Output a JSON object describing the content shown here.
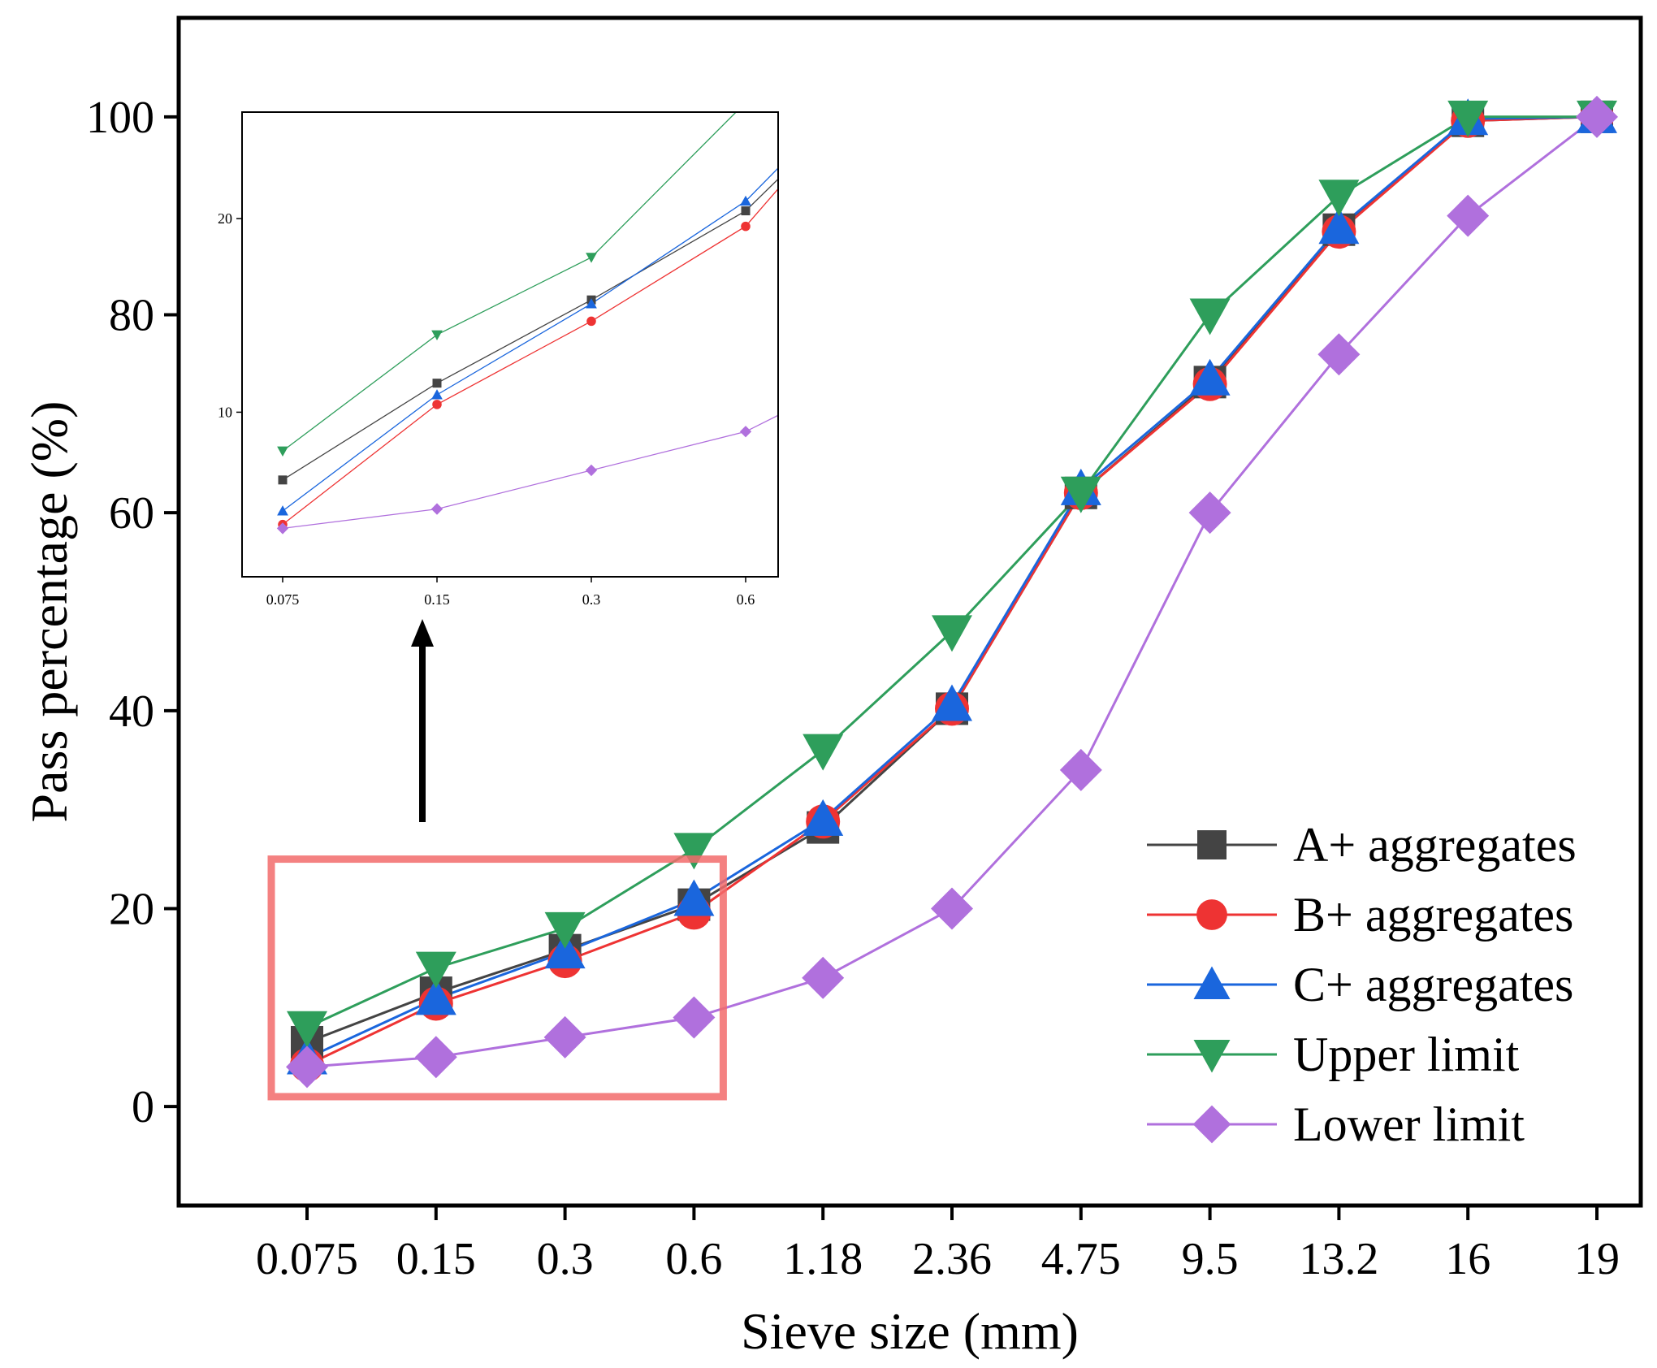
{
  "chart_data": {
    "type": "line",
    "title": "",
    "xlabel": "Sieve size (mm)",
    "ylabel": "Pass percentage (%)",
    "categories": [
      "0.075",
      "0.15",
      "0.3",
      "0.6",
      "1.18",
      "2.36",
      "4.75",
      "9.5",
      "13.2",
      "16",
      "19"
    ],
    "ylim": [
      -10,
      110
    ],
    "yticks": [
      0,
      20,
      40,
      60,
      80,
      100
    ],
    "grid": false,
    "legend_position": "bottom-right",
    "series": [
      {
        "name": "A+ aggregates",
        "color": "#444444",
        "marker": "square",
        "values": [
          6.5,
          11.5,
          15.8,
          20.4,
          28.2,
          40.2,
          62.0,
          73.2,
          88.6,
          99.6,
          100
        ]
      },
      {
        "name": "B+ aggregates",
        "color": "#ee3333",
        "marker": "circle",
        "values": [
          4.2,
          10.4,
          14.7,
          19.6,
          28.8,
          40.2,
          62.0,
          73.0,
          88.4,
          99.6,
          100
        ]
      },
      {
        "name": "C+ aggregates",
        "color": "#1a66dd",
        "marker": "triangle-up",
        "values": [
          4.9,
          10.9,
          15.6,
          20.9,
          29.0,
          40.6,
          62.4,
          73.5,
          88.8,
          99.8,
          100
        ]
      },
      {
        "name": "Upper limit",
        "color": "#2e9e5b",
        "marker": "triangle-down",
        "values": [
          8,
          14,
          18,
          26,
          36,
          48,
          62,
          80,
          92,
          100,
          100
        ]
      },
      {
        "name": "Lower limit",
        "color": "#b070dd",
        "marker": "diamond",
        "values": [
          4,
          5,
          7,
          9,
          13,
          20,
          34,
          60,
          76,
          90,
          100
        ]
      }
    ],
    "highlight_box": {
      "x_from": "0.075",
      "x_to": "0.6",
      "y_range": [
        1,
        25
      ],
      "color": "#f26b6b"
    },
    "inset": {
      "categories": [
        "0.075",
        "0.15",
        "0.3",
        "0.6"
      ],
      "ylim": [
        1.5,
        25.5
      ],
      "yticks": [
        10,
        20
      ]
    }
  }
}
